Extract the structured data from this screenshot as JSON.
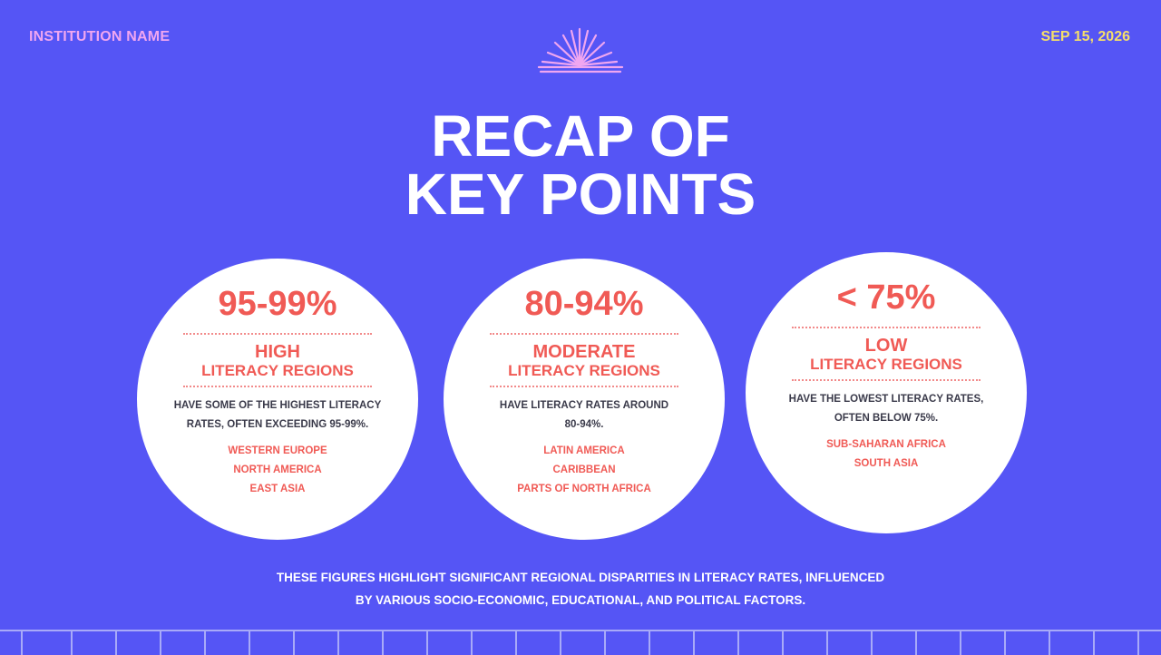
{
  "header": {
    "institution": "INSTITUTION NAME",
    "date": "SEP 15, 2026"
  },
  "title": {
    "line1": "RECAP OF",
    "line2": "KEY POINTS"
  },
  "cards": [
    {
      "percent": "95-99%",
      "level": "HIGH",
      "subtitle": "LITERACY REGIONS",
      "description_line1": "HAVE SOME OF THE HIGHEST LITERACY",
      "description_line2": "RATES, OFTEN EXCEEDING 95-99%.",
      "regions": [
        "WESTERN EUROPE",
        "NORTH AMERICA",
        "EAST ASIA"
      ]
    },
    {
      "percent": "80-94%",
      "level": "MODERATE",
      "subtitle": "LITERACY REGIONS",
      "description_line1": "HAVE LITERACY RATES AROUND",
      "description_line2": "80-94%.",
      "regions": [
        "LATIN AMERICA",
        "CARIBBEAN",
        "PARTS OF NORTH AFRICA"
      ]
    },
    {
      "percent": "< 75%",
      "level": "LOW",
      "subtitle": "LITERACY REGIONS",
      "description_line1": "HAVE THE LOWEST LITERACY RATES,",
      "description_line2": "OFTEN BELOW 75%.",
      "regions": [
        "SUB-SAHARAN AFRICA",
        "SOUTH ASIA"
      ]
    }
  ],
  "footer": {
    "line1": "THESE FIGURES HIGHLIGHT SIGNIFICANT REGIONAL DISPARITIES IN LITERACY RATES, INFLUENCED",
    "line2": "BY VARIOUS SOCIO-ECONOMIC, EDUCATIONAL, AND POLITICAL FACTORS."
  },
  "colors": {
    "background": "#5555f5",
    "accent": "#f05a55",
    "institution": "#f0a6f0",
    "date": "#f5df6a"
  },
  "icons": {
    "header_ornament": "sunburst-icon"
  }
}
